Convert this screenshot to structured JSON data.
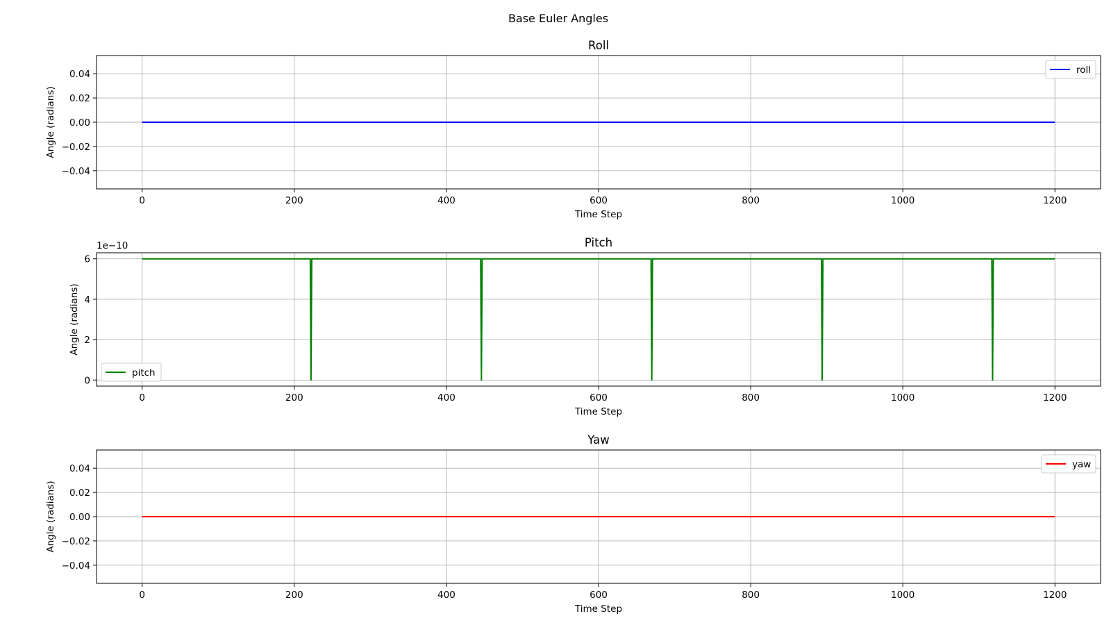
{
  "figure": {
    "suptitle": "Base Euler Angles"
  },
  "chart_data": [
    {
      "type": "line",
      "title": "Roll",
      "xlabel": "Time Step",
      "ylabel": "Angle (radians)",
      "xlim": [
        -60,
        1260
      ],
      "ylim": [
        -0.055,
        0.055
      ],
      "xticks": [
        0,
        200,
        400,
        600,
        800,
        1000,
        1200
      ],
      "xtick_labels": [
        "0",
        "200",
        "400",
        "600",
        "800",
        "1000",
        "1200"
      ],
      "yticks": [
        0.04,
        0.02,
        0.0,
        -0.02,
        -0.04
      ],
      "ytick_labels": [
        "0.04",
        "0.02",
        "0.00",
        "−0.02",
        "−0.04"
      ],
      "offset_text": "",
      "grid": true,
      "legend": "upper right",
      "series": [
        {
          "name": "roll",
          "color": "#0000ff",
          "x": [
            0,
            1200
          ],
          "y": [
            0,
            0
          ]
        }
      ]
    },
    {
      "type": "line",
      "title": "Pitch",
      "xlabel": "Time Step",
      "ylabel": "Angle (radians)",
      "xlim": [
        -60,
        1260
      ],
      "ylim": [
        -0.3,
        6.3
      ],
      "xticks": [
        0,
        200,
        400,
        600,
        800,
        1000,
        1200
      ],
      "xtick_labels": [
        "0",
        "200",
        "400",
        "600",
        "800",
        "1000",
        "1200"
      ],
      "yticks": [
        6,
        4,
        2,
        0
      ],
      "ytick_labels": [
        "6",
        "4",
        "2",
        "0"
      ],
      "offset_text": "1e−10",
      "value_scale": "1e-10",
      "grid": true,
      "legend": "lower left",
      "series": [
        {
          "name": "pitch",
          "color": "#008000",
          "x": [
            0,
            221,
            222,
            223,
            445,
            446,
            447,
            669,
            670,
            671,
            893,
            894,
            895,
            1117,
            1118,
            1119,
            1200
          ],
          "y": [
            6,
            6,
            0,
            6,
            6,
            0,
            6,
            6,
            0,
            6,
            6,
            0,
            6,
            6,
            0,
            6,
            6
          ]
        }
      ]
    },
    {
      "type": "line",
      "title": "Yaw",
      "xlabel": "Time Step",
      "ylabel": "Angle (radians)",
      "xlim": [
        -60,
        1260
      ],
      "ylim": [
        -0.055,
        0.055
      ],
      "xticks": [
        0,
        200,
        400,
        600,
        800,
        1000,
        1200
      ],
      "xtick_labels": [
        "0",
        "200",
        "400",
        "600",
        "800",
        "1000",
        "1200"
      ],
      "yticks": [
        0.04,
        0.02,
        0.0,
        -0.02,
        -0.04
      ],
      "ytick_labels": [
        "0.04",
        "0.02",
        "0.00",
        "−0.02",
        "−0.04"
      ],
      "offset_text": "",
      "grid": true,
      "legend": "upper right",
      "series": [
        {
          "name": "yaw",
          "color": "#ff0000",
          "x": [
            0,
            1200
          ],
          "y": [
            0,
            0
          ]
        }
      ]
    }
  ]
}
